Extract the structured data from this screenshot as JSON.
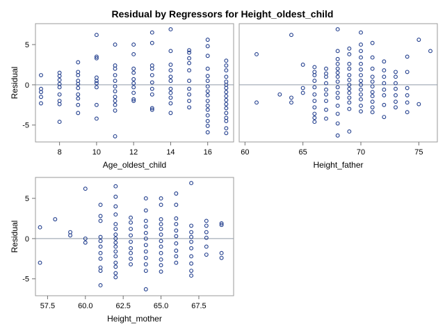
{
  "title": "Residual by Regressors for Height_oldest_child",
  "marker_color": "#1f3c8c",
  "reference_line_color": "#8f9aa6",
  "chart_data": [
    {
      "type": "scatter",
      "xlabel": "Age_oldest_child",
      "ylabel": "Residual",
      "x_ticks": [
        "8",
        "10",
        "12",
        "14",
        "16"
      ],
      "x_tick_values": [
        8,
        10,
        12,
        14,
        16
      ],
      "y_ticks": [
        "5",
        "0",
        "-5"
      ],
      "y_tick_values": [
        5,
        0,
        -5
      ],
      "xlim": [
        6.7,
        17.4
      ],
      "ylim": [
        -7.1,
        7.6
      ],
      "reference_line_y": 0,
      "grid": false,
      "points": [
        [
          7,
          1.2
        ],
        [
          7,
          -0.5
        ],
        [
          7,
          -0.9
        ],
        [
          7,
          -1.5
        ],
        [
          7,
          -2.3
        ],
        [
          8,
          1.5
        ],
        [
          8,
          1.1
        ],
        [
          8,
          0.6
        ],
        [
          8,
          0.1
        ],
        [
          8,
          -0.3
        ],
        [
          8,
          -1.2
        ],
        [
          8,
          -2.0
        ],
        [
          8,
          -2.4
        ],
        [
          8,
          -4.6
        ],
        [
          9,
          2.8
        ],
        [
          9,
          1.6
        ],
        [
          9,
          1.2
        ],
        [
          9,
          0.5
        ],
        [
          9,
          0.1
        ],
        [
          9,
          -0.4
        ],
        [
          9,
          -1.2
        ],
        [
          9,
          -1.7
        ],
        [
          9,
          -2.5
        ],
        [
          9,
          -3.5
        ],
        [
          10,
          6.2
        ],
        [
          10,
          3.5
        ],
        [
          10,
          3.3
        ],
        [
          10,
          0.9
        ],
        [
          10,
          0.5
        ],
        [
          10,
          0.2
        ],
        [
          10,
          -0.3
        ],
        [
          10,
          -2.5
        ],
        [
          10,
          -4.2
        ],
        [
          11,
          5.0
        ],
        [
          11,
          2.4
        ],
        [
          11,
          2.0
        ],
        [
          11,
          1.2
        ],
        [
          11,
          0.5
        ],
        [
          11,
          -0.2
        ],
        [
          11,
          -0.8
        ],
        [
          11,
          -1.5
        ],
        [
          11,
          -2.0
        ],
        [
          11,
          -2.5
        ],
        [
          11,
          -3.2
        ],
        [
          11,
          -6.4
        ],
        [
          12,
          5.0
        ],
        [
          12,
          3.8
        ],
        [
          12,
          2.0
        ],
        [
          12,
          1.5
        ],
        [
          12,
          0.7
        ],
        [
          12,
          0.2
        ],
        [
          12,
          -0.3
        ],
        [
          12,
          -1.0
        ],
        [
          12,
          -1.8
        ],
        [
          12,
          -2.0
        ],
        [
          13,
          6.5
        ],
        [
          13,
          5.2
        ],
        [
          13,
          2.4
        ],
        [
          13,
          2.0
        ],
        [
          13,
          1.2
        ],
        [
          13,
          0.3
        ],
        [
          13,
          -0.5
        ],
        [
          13,
          -1.2
        ],
        [
          13,
          -2.9
        ],
        [
          13,
          -3.1
        ],
        [
          14,
          6.9
        ],
        [
          14,
          4.2
        ],
        [
          14,
          2.5
        ],
        [
          14,
          1.8
        ],
        [
          14,
          1.0
        ],
        [
          14,
          0.5
        ],
        [
          14,
          -0.5
        ],
        [
          14,
          -1.0
        ],
        [
          14,
          -1.6
        ],
        [
          14,
          -2.3
        ],
        [
          14,
          -3.5
        ],
        [
          15,
          4.3
        ],
        [
          15,
          4.0
        ],
        [
          15,
          3.3
        ],
        [
          15,
          2.7
        ],
        [
          15,
          1.8
        ],
        [
          15,
          0.5
        ],
        [
          15,
          -0.5
        ],
        [
          15,
          -1.2
        ],
        [
          15,
          -2.0
        ],
        [
          15,
          -2.8
        ],
        [
          16,
          5.6
        ],
        [
          16,
          4.8
        ],
        [
          16,
          3.6
        ],
        [
          16,
          2.0
        ],
        [
          16,
          1.1
        ],
        [
          16,
          0.5
        ],
        [
          16,
          -0.2
        ],
        [
          16,
          -0.8
        ],
        [
          16,
          -1.3
        ],
        [
          16,
          -2.0
        ],
        [
          16,
          -2.6
        ],
        [
          16,
          -3.1
        ],
        [
          16,
          -3.8
        ],
        [
          16,
          -4.5
        ],
        [
          16,
          -5.1
        ],
        [
          16,
          -5.9
        ],
        [
          17,
          3.0
        ],
        [
          17,
          2.4
        ],
        [
          17,
          1.8
        ],
        [
          17,
          1.0
        ],
        [
          17,
          0.4
        ],
        [
          17,
          0.0
        ],
        [
          17,
          -0.4
        ],
        [
          17,
          -0.9
        ],
        [
          17,
          -1.4
        ],
        [
          17,
          -1.9
        ],
        [
          17,
          -2.4
        ],
        [
          17,
          -2.9
        ],
        [
          17,
          -3.5
        ],
        [
          17,
          -4.1
        ],
        [
          17,
          -4.5
        ],
        [
          17,
          -5.4
        ],
        [
          17,
          -6.0
        ]
      ]
    },
    {
      "type": "scatter",
      "xlabel": "Height_father",
      "ylabel": "",
      "x_ticks": [
        "60",
        "65",
        "70",
        "75"
      ],
      "x_tick_values": [
        60,
        65,
        70,
        75
      ],
      "y_ticks": [],
      "y_tick_values": [],
      "xlim": [
        59.5,
        76.6
      ],
      "ylim": [
        -7.1,
        7.6
      ],
      "reference_line_y": 0,
      "grid": false,
      "points": [
        [
          61,
          3.8
        ],
        [
          61,
          -2.2
        ],
        [
          63,
          -1.2
        ],
        [
          64,
          6.2
        ],
        [
          64,
          -1.6
        ],
        [
          64,
          -2.2
        ],
        [
          65,
          2.5
        ],
        [
          65,
          -0.4
        ],
        [
          65,
          -1.0
        ],
        [
          66,
          2.2
        ],
        [
          66,
          1.6
        ],
        [
          66,
          1.2
        ],
        [
          66,
          0.5
        ],
        [
          66,
          -0.3
        ],
        [
          66,
          -1.2
        ],
        [
          66,
          -2.0
        ],
        [
          66,
          -2.8
        ],
        [
          66,
          -3.6
        ],
        [
          66,
          -4.1
        ],
        [
          66,
          -4.6
        ],
        [
          67,
          2.0
        ],
        [
          67,
          1.4
        ],
        [
          67,
          1.0
        ],
        [
          67,
          0.2
        ],
        [
          67,
          -0.6
        ],
        [
          67,
          -1.2
        ],
        [
          67,
          -2.0
        ],
        [
          67,
          -3.1
        ],
        [
          67,
          -4.2
        ],
        [
          68,
          6.9
        ],
        [
          68,
          4.2
        ],
        [
          68,
          3.2
        ],
        [
          68,
          2.6
        ],
        [
          68,
          2.0
        ],
        [
          68,
          1.5
        ],
        [
          68,
          1.0
        ],
        [
          68,
          0.4
        ],
        [
          68,
          -0.3
        ],
        [
          68,
          -1.0
        ],
        [
          68,
          -1.6
        ],
        [
          68,
          -2.6
        ],
        [
          68,
          -3.6
        ],
        [
          68,
          -4.8
        ],
        [
          68,
          -6.3
        ],
        [
          69,
          4.5
        ],
        [
          69,
          3.8
        ],
        [
          69,
          2.6
        ],
        [
          69,
          2.0
        ],
        [
          69,
          1.2
        ],
        [
          69,
          0.6
        ],
        [
          69,
          0.0
        ],
        [
          69,
          -0.5
        ],
        [
          69,
          -1.0
        ],
        [
          69,
          -1.6
        ],
        [
          69,
          -2.2
        ],
        [
          69,
          -3.0
        ],
        [
          69,
          -5.8
        ],
        [
          70,
          6.5
        ],
        [
          70,
          5.0
        ],
        [
          70,
          4.2
        ],
        [
          70,
          3.4
        ],
        [
          70,
          2.6
        ],
        [
          70,
          1.9
        ],
        [
          70,
          1.2
        ],
        [
          70,
          0.5
        ],
        [
          70,
          0.0
        ],
        [
          70,
          -0.6
        ],
        [
          70,
          -1.2
        ],
        [
          70,
          -1.8
        ],
        [
          70,
          -2.6
        ],
        [
          70,
          -3.3
        ],
        [
          71,
          5.2
        ],
        [
          71,
          3.4
        ],
        [
          71,
          2.0
        ],
        [
          71,
          1.0
        ],
        [
          71,
          0.4
        ],
        [
          71,
          -0.2
        ],
        [
          71,
          -0.9
        ],
        [
          71,
          -1.4
        ],
        [
          71,
          -2.1
        ],
        [
          71,
          -2.8
        ],
        [
          71,
          -3.4
        ],
        [
          72,
          2.9
        ],
        [
          72,
          1.8
        ],
        [
          72,
          1.0
        ],
        [
          72,
          0.2
        ],
        [
          72,
          -0.6
        ],
        [
          72,
          -1.3
        ],
        [
          72,
          -2.5
        ],
        [
          72,
          -4.0
        ],
        [
          73,
          1.6
        ],
        [
          73,
          1.0
        ],
        [
          73,
          0.2
        ],
        [
          73,
          -0.5
        ],
        [
          73,
          -1.3
        ],
        [
          73,
          -2.1
        ],
        [
          73,
          -2.8
        ],
        [
          74,
          3.5
        ],
        [
          74,
          1.6
        ],
        [
          74,
          -0.4
        ],
        [
          74,
          -1.3
        ],
        [
          74,
          -2.2
        ],
        [
          74,
          -3.4
        ],
        [
          75,
          5.6
        ],
        [
          75,
          -2.4
        ],
        [
          76,
          4.2
        ]
      ]
    },
    {
      "type": "scatter",
      "xlabel": "Height_mother",
      "ylabel": "Residual",
      "x_ticks": [
        "57.5",
        "60.0",
        "62.5",
        "65.0",
        "67.5"
      ],
      "x_tick_values": [
        57.5,
        60,
        62.5,
        65,
        67.5
      ],
      "y_ticks": [
        "5",
        "0",
        "-5"
      ],
      "y_tick_values": [
        5,
        0,
        -5
      ],
      "xlim": [
        56.7,
        69.8
      ],
      "ylim": [
        -7.1,
        7.6
      ],
      "reference_line_y": 0,
      "grid": false,
      "points": [
        [
          57,
          1.4
        ],
        [
          57,
          -3.0
        ],
        [
          58,
          2.4
        ],
        [
          59,
          0.8
        ],
        [
          59,
          0.4
        ],
        [
          60,
          6.2
        ],
        [
          60,
          0.0
        ],
        [
          60,
          -0.5
        ],
        [
          61,
          4.2
        ],
        [
          61,
          2.8
        ],
        [
          61,
          2.2
        ],
        [
          61,
          0.2
        ],
        [
          61,
          -0.3
        ],
        [
          61,
          -1.0
        ],
        [
          61,
          -1.8
        ],
        [
          61,
          -2.5
        ],
        [
          61,
          -3.6
        ],
        [
          61,
          -4.0
        ],
        [
          61,
          -5.8
        ],
        [
          62,
          6.5
        ],
        [
          62,
          5.2
        ],
        [
          62,
          4.0
        ],
        [
          62,
          3.0
        ],
        [
          62,
          1.8
        ],
        [
          62,
          1.2
        ],
        [
          62,
          0.5
        ],
        [
          62,
          0.0
        ],
        [
          62,
          -0.5
        ],
        [
          62,
          -1.0
        ],
        [
          62,
          -1.6
        ],
        [
          62,
          -2.2
        ],
        [
          62,
          -3.0
        ],
        [
          62,
          -3.5
        ],
        [
          62,
          -4.3
        ],
        [
          62,
          -4.8
        ],
        [
          63,
          2.6
        ],
        [
          63,
          2.0
        ],
        [
          63,
          1.2
        ],
        [
          63,
          0.4
        ],
        [
          63,
          -0.4
        ],
        [
          63,
          -1.2
        ],
        [
          63,
          -1.8
        ],
        [
          63,
          -2.5
        ],
        [
          63,
          -3.2
        ],
        [
          64,
          5.0
        ],
        [
          64,
          3.5
        ],
        [
          64,
          2.2
        ],
        [
          64,
          1.5
        ],
        [
          64,
          0.7
        ],
        [
          64,
          0.0
        ],
        [
          64,
          -0.8
        ],
        [
          64,
          -1.6
        ],
        [
          64,
          -2.4
        ],
        [
          64,
          -3.2
        ],
        [
          64,
          -4.0
        ],
        [
          64,
          -6.3
        ],
        [
          65,
          5.0
        ],
        [
          65,
          4.2
        ],
        [
          65,
          2.4
        ],
        [
          65,
          1.8
        ],
        [
          65,
          1.2
        ],
        [
          65,
          0.5
        ],
        [
          65,
          -0.3
        ],
        [
          65,
          -1.0
        ],
        [
          65,
          -1.8
        ],
        [
          65,
          -2.6
        ],
        [
          65,
          -3.3
        ],
        [
          65,
          -4.1
        ],
        [
          66,
          5.6
        ],
        [
          66,
          4.2
        ],
        [
          66,
          2.5
        ],
        [
          66,
          1.8
        ],
        [
          66,
          1.0
        ],
        [
          66,
          0.3
        ],
        [
          66,
          -0.6
        ],
        [
          66,
          -1.5
        ],
        [
          66,
          -2.2
        ],
        [
          66,
          -3.0
        ],
        [
          67,
          6.9
        ],
        [
          67,
          1.6
        ],
        [
          67,
          0.8
        ],
        [
          67,
          0.2
        ],
        [
          67,
          -0.4
        ],
        [
          67,
          -1.2
        ],
        [
          67,
          -2.2
        ],
        [
          67,
          -3.1
        ],
        [
          67,
          -4.0
        ],
        [
          67,
          -4.6
        ],
        [
          68,
          2.2
        ],
        [
          68,
          1.6
        ],
        [
          68,
          0.8
        ],
        [
          68,
          0.1
        ],
        [
          68,
          -1.0
        ],
        [
          68,
          -2.0
        ],
        [
          69,
          1.9
        ],
        [
          69,
          1.7
        ],
        [
          69,
          -1.8
        ],
        [
          69,
          -2.4
        ]
      ]
    }
  ]
}
